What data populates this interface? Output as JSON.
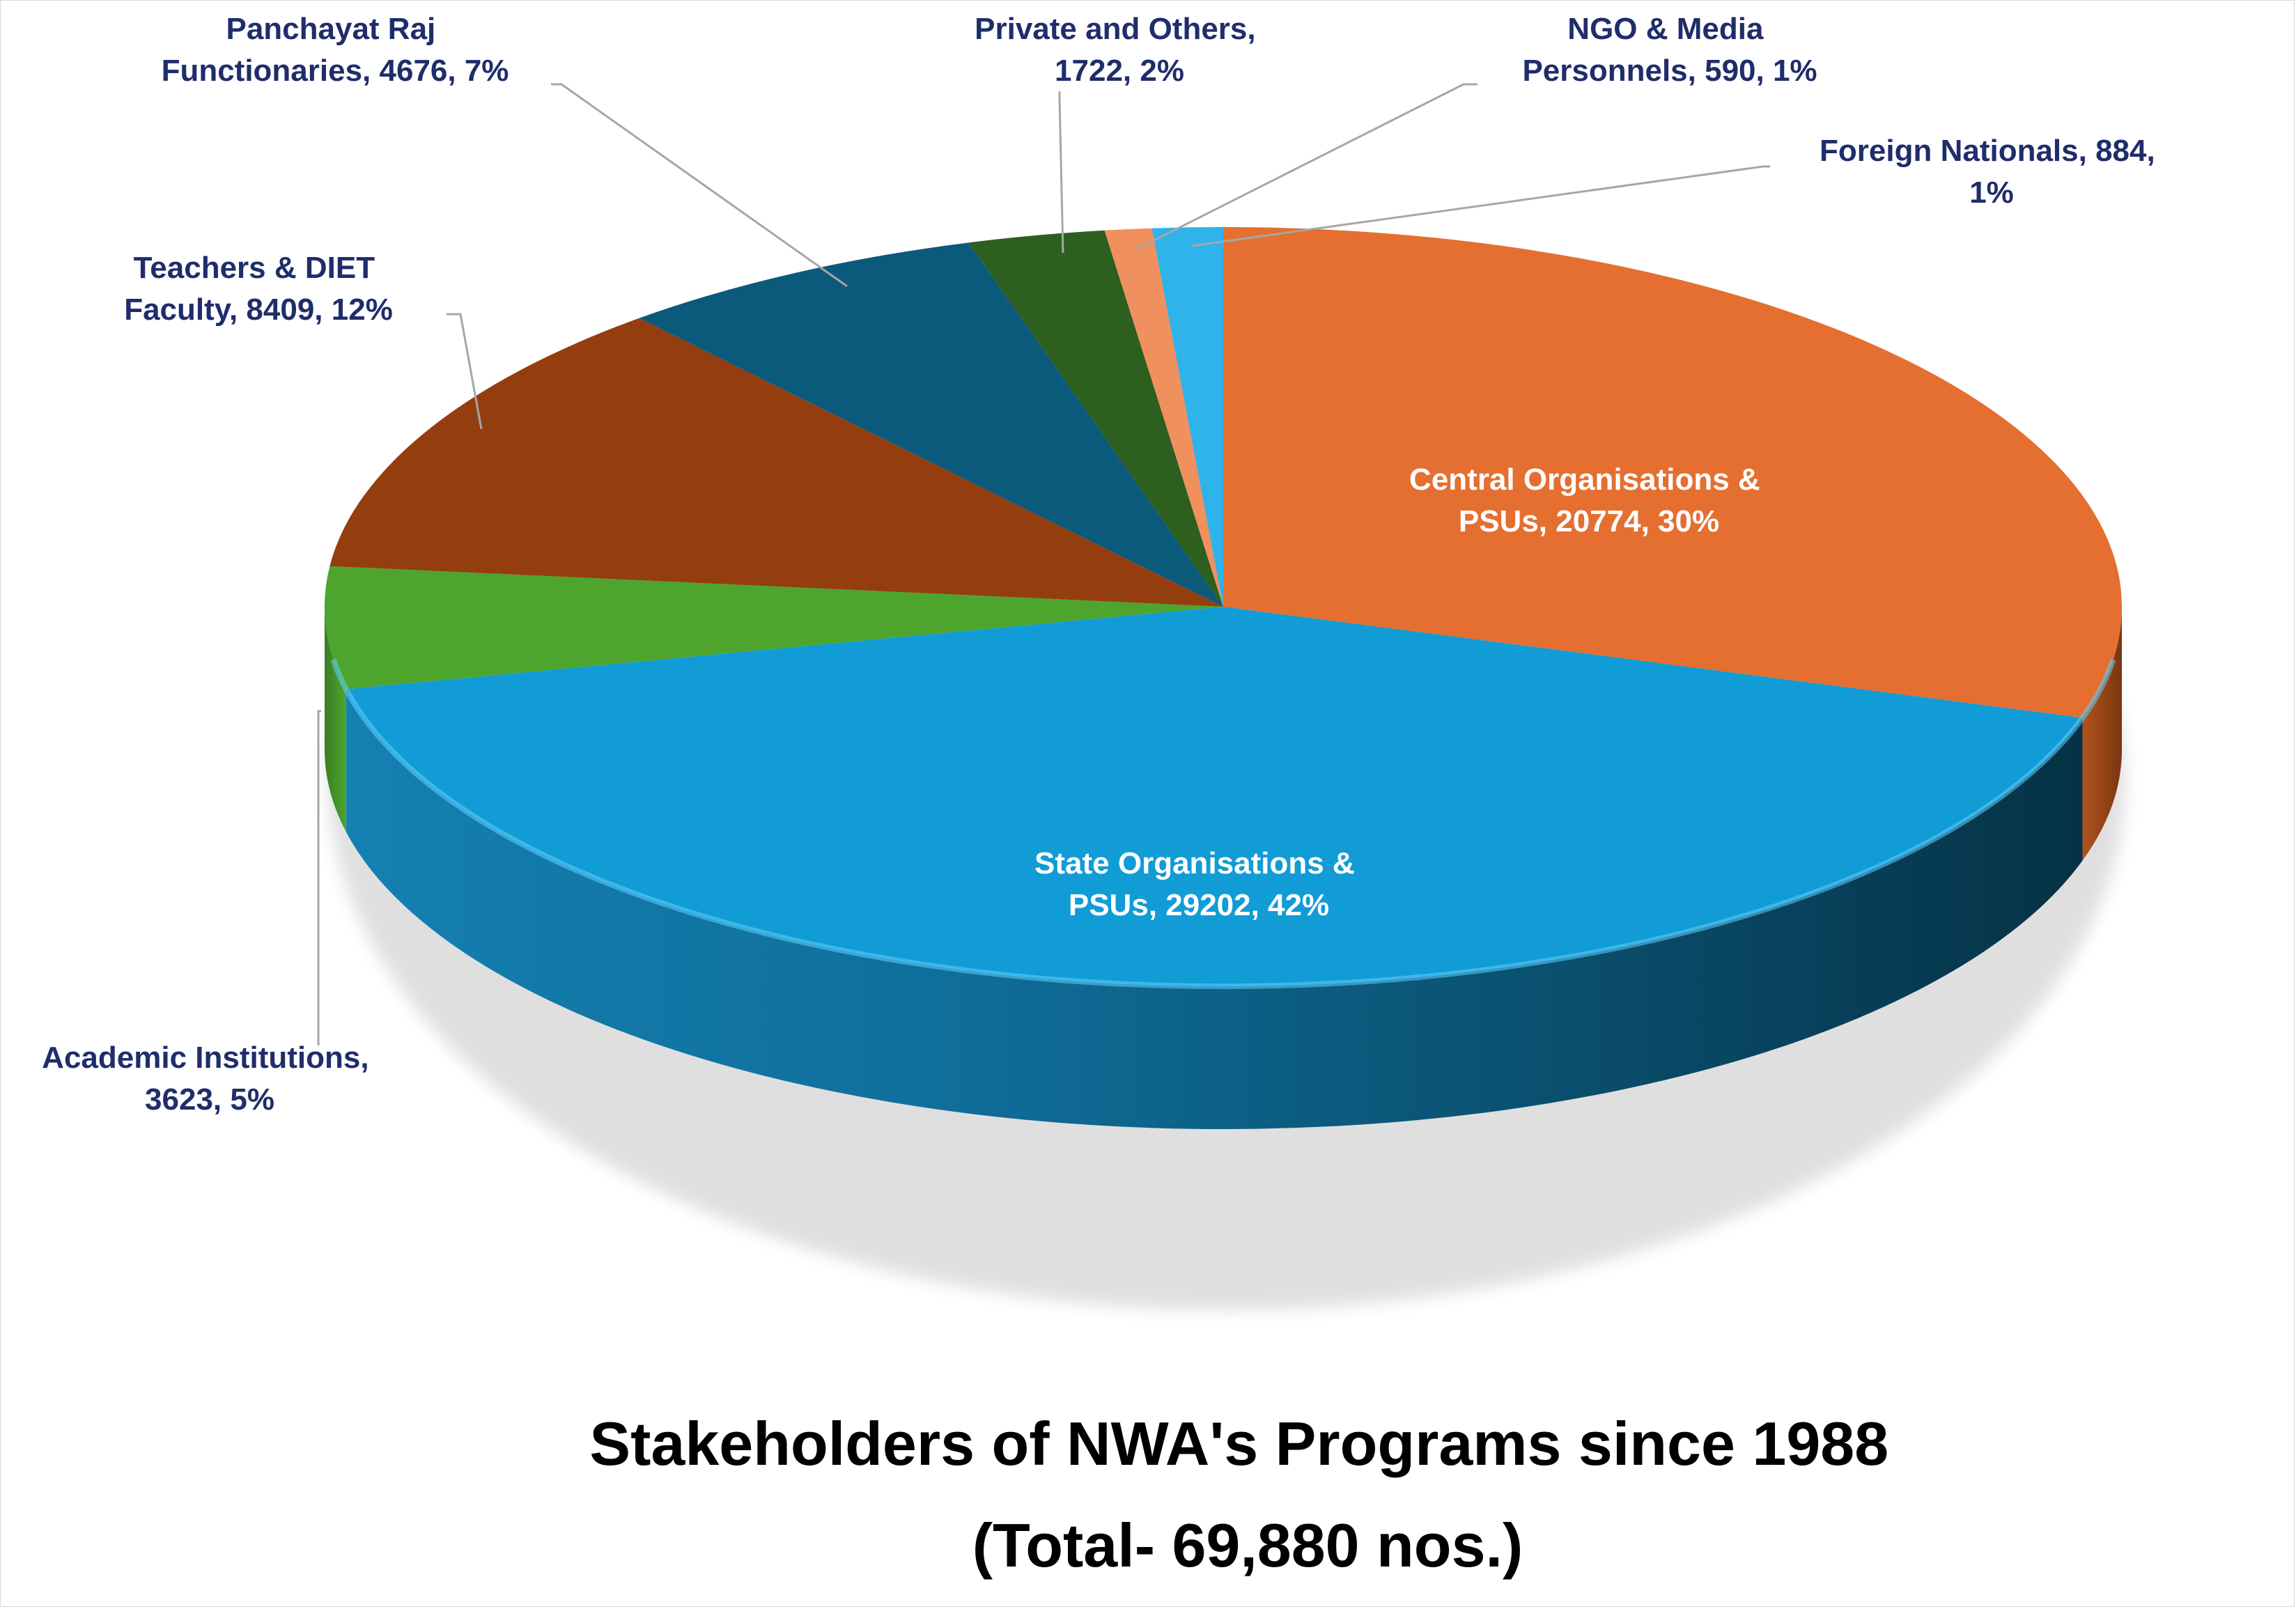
{
  "chart_data": {
    "type": "pie",
    "style": "3d",
    "title_line1": "Stakeholders of NWA's Programs since 1988",
    "title_line2": "(Total- 69,880 nos.)",
    "slices": [
      {
        "name": "Central Organisations &",
        "name2": "PSUs",
        "value": 20774,
        "percent": "30%",
        "color": "#E46F31",
        "label_color": "#ffffff",
        "label_line1": "Central Organisations &",
        "label_line2": "PSUs, 20774, 30%"
      },
      {
        "name": "State Organisations &",
        "name2": "PSUs",
        "value": 29202,
        "percent": "42%",
        "color": "#119CD5",
        "label_color": "#ffffff",
        "label_line1": "State Organisations &",
        "label_line2": "PSUs, 29202, 42%"
      },
      {
        "name": "Academic Institutions",
        "value": 3623,
        "percent": "5%",
        "color": "#4DA52E",
        "label_color": "#1F2D6B",
        "label_line1": "Academic Institutions,",
        "label_line2": "3623, 5%"
      },
      {
        "name": "Teachers & DIET Faculty",
        "value": 8409,
        "percent": "12%",
        "color": "#943D0F",
        "label_color": "#1F2D6B",
        "label_line1": "Teachers & DIET",
        "label_line2": "Faculty, 8409, 12%"
      },
      {
        "name": "Panchayat Raj Functionaries",
        "value": 4676,
        "percent": "7%",
        "color": "#0B5A7C",
        "label_color": "#1F2D6B",
        "label_line1": "Panchayat Raj",
        "label_line2": "Functionaries, 4676, 7%"
      },
      {
        "name": "Private and Others",
        "value": 1722,
        "percent": "2%",
        "color": "#2D5F1E",
        "label_color": "#1F2D6B",
        "label_line1": "Private and Others,",
        "label_line2": "1722, 2%"
      },
      {
        "name": "NGO & Media Personnels",
        "value": 590,
        "percent": "1%",
        "color": "#F0905E",
        "label_color": "#1F2D6B",
        "label_line1": "NGO & Media",
        "label_line2": "Personnels, 590, 1%"
      },
      {
        "name": "Foreign Nationals",
        "value": 884,
        "percent": "1%",
        "color": "#2EB3EB",
        "label_color": "#1F2D6B",
        "label_line1": "Foreign Nationals, 884,",
        "label_line2": "1%"
      }
    ]
  }
}
